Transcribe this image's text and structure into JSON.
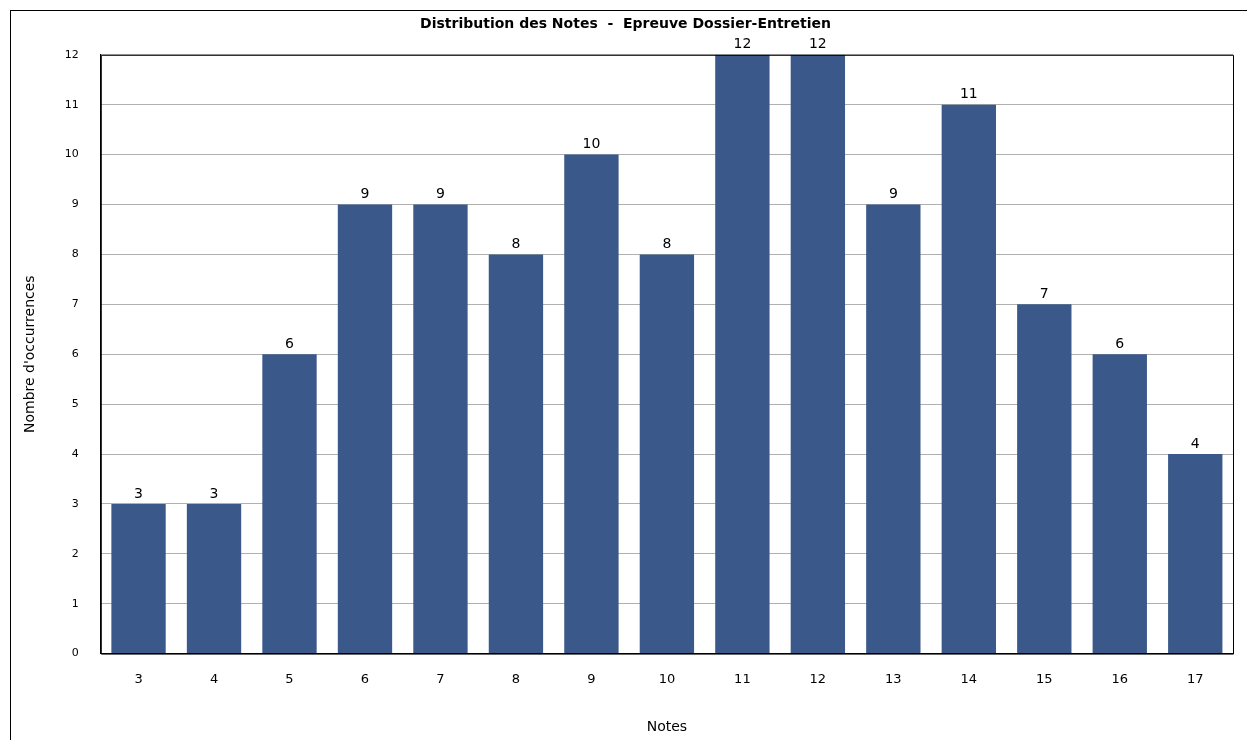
{
  "chart_data": {
    "type": "bar",
    "title": "Distribution des Notes  -  Epreuve Dossier-Entretien",
    "xlabel": "Notes",
    "ylabel": "Nombre d'occurrences",
    "categories": [
      "3",
      "4",
      "5",
      "6",
      "7",
      "8",
      "9",
      "10",
      "11",
      "12",
      "13",
      "14",
      "15",
      "16",
      "17"
    ],
    "values": [
      3,
      3,
      6,
      9,
      9,
      8,
      10,
      8,
      12,
      12,
      9,
      11,
      7,
      6,
      4
    ],
    "color": "#3a5889",
    "ylim": [
      0,
      12
    ],
    "yticks": [
      0,
      1,
      2,
      3,
      4,
      5,
      6,
      7,
      8,
      9,
      10,
      11,
      12
    ],
    "grid": "y",
    "legend": false,
    "data_labels": true
  }
}
